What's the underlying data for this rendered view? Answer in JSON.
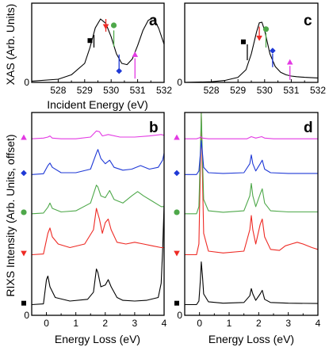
{
  "chart_data": [
    {
      "panel": "a",
      "type": "line",
      "xlabel": "Incident Energy (eV)",
      "ylabel": "XAS (Arb. Units)",
      "xlim": [
        527,
        532
      ],
      "ylim": [
        0,
        1.2
      ],
      "x_ticks": [
        "528",
        "529",
        "530",
        "531",
        "532"
      ],
      "y_ticks": [
        "0"
      ],
      "series": [
        {
          "x": [
            527.0,
            528.0,
            528.5,
            529.0,
            529.2,
            529.4,
            529.6,
            529.8,
            530.0,
            530.2,
            530.4,
            530.6,
            530.8,
            531.0,
            531.2,
            531.4,
            531.6,
            531.8,
            532.0
          ],
          "values": [
            0.02,
            0.05,
            0.12,
            0.3,
            0.55,
            0.86,
            1.0,
            0.93,
            0.72,
            0.45,
            0.3,
            0.28,
            0.37,
            0.58,
            0.82,
            0.98,
            1.02,
            0.85,
            0.6
          ],
          "color": "#000000"
        }
      ],
      "markers": [
        {
          "x": 529.35,
          "y": 0.66,
          "shape": "square",
          "color": "#000000",
          "stem_top": 0.75,
          "stem_bottom": 0.55
        },
        {
          "x": 529.8,
          "y": 0.88,
          "shape": "triangle-down",
          "color": "#ee2a24",
          "stem_top": 1.0,
          "stem_bottom": 0.8
        },
        {
          "x": 530.1,
          "y": 0.9,
          "shape": "circle",
          "color": "#4ea84a",
          "stem_top": 0.82,
          "stem_bottom": 0.56
        },
        {
          "x": 530.3,
          "y": 0.18,
          "shape": "diamond",
          "color": "#1f39d6",
          "stem_top": 0.44,
          "stem_bottom": 0.2
        },
        {
          "x": 530.9,
          "y": 0.44,
          "shape": "triangle-up",
          "color": "#e339e3",
          "stem_top": 0.38,
          "stem_bottom": 0.06
        }
      ]
    },
    {
      "panel": "c",
      "type": "line",
      "xlim": [
        527,
        532
      ],
      "ylim": [
        0,
        1.2
      ],
      "x_ticks": [
        "528",
        "529",
        "530",
        "531",
        "532"
      ],
      "y_ticks": [
        "0"
      ],
      "series": [
        {
          "x": [
            527.0,
            528.0,
            528.5,
            529.0,
            529.3,
            529.5,
            529.7,
            529.8,
            529.9,
            530.0,
            530.2,
            530.4,
            530.6,
            530.8,
            531.0,
            531.2,
            531.5,
            532.0
          ],
          "values": [
            0.0,
            0.01,
            0.03,
            0.08,
            0.2,
            0.45,
            0.8,
            0.94,
            0.95,
            0.82,
            0.45,
            0.25,
            0.16,
            0.12,
            0.1,
            0.09,
            0.08,
            0.07
          ],
          "color": "#000000"
        }
      ],
      "markers": [
        {
          "x": 529.35,
          "y": 0.64,
          "shape": "square",
          "color": "#000000",
          "stem_top": 0.6,
          "stem_bottom": 0.35
        },
        {
          "x": 529.8,
          "y": 0.7,
          "shape": "triangle-down",
          "color": "#ee2a24",
          "stem_top": 0.88,
          "stem_bottom": 0.7
        },
        {
          "x": 530.05,
          "y": 0.84,
          "shape": "circle",
          "color": "#4ea84a",
          "stem_top": 0.78,
          "stem_bottom": 0.55
        },
        {
          "x": 530.3,
          "y": 0.5,
          "shape": "diamond",
          "color": "#1f39d6",
          "stem_top": 0.45,
          "stem_bottom": 0.24
        },
        {
          "x": 530.95,
          "y": 0.32,
          "shape": "triangle-up",
          "color": "#e339e3",
          "stem_top": 0.26,
          "stem_bottom": 0.04
        }
      ]
    },
    {
      "panel": "b",
      "type": "line",
      "xlabel": "Energy Loss (eV)",
      "ylabel": "RIXS Intensity (Arb. Units, offset)",
      "xlim": [
        -0.5,
        4
      ],
      "ylim": [
        0,
        5.6
      ],
      "x_ticks": [
        "0",
        "1",
        "2",
        "3",
        "4"
      ],
      "y_ticks": [
        "0"
      ],
      "series": [
        {
          "marker": "square",
          "color": "#000000",
          "offset": 0.3,
          "x": [
            -0.5,
            -0.1,
            0.0,
            0.05,
            0.12,
            0.3,
            0.8,
            1.4,
            1.6,
            1.7,
            1.75,
            1.85,
            2.0,
            2.1,
            2.2,
            2.4,
            2.6,
            3.0,
            3.4,
            3.8,
            3.9,
            3.95,
            4.0
          ],
          "values": [
            0.0,
            0.02,
            0.7,
            0.8,
            0.5,
            0.2,
            0.1,
            0.15,
            0.35,
            1.0,
            0.9,
            0.5,
            0.55,
            0.7,
            0.5,
            0.2,
            0.12,
            0.1,
            0.12,
            0.2,
            0.6,
            1.5,
            2.8
          ]
        },
        {
          "marker": "triangle-down",
          "color": "#ee2a24",
          "offset": 1.7,
          "x": [
            -0.5,
            -0.1,
            0.05,
            0.12,
            0.2,
            0.4,
            0.8,
            1.3,
            1.6,
            1.7,
            1.8,
            1.9,
            2.0,
            2.1,
            2.2,
            2.4,
            2.7,
            3.0,
            3.3,
            3.6,
            3.9,
            4.0
          ],
          "values": [
            0.0,
            0.02,
            0.6,
            0.75,
            0.5,
            0.3,
            0.2,
            0.3,
            0.7,
            1.3,
            1.0,
            0.6,
            0.9,
            1.0,
            0.7,
            0.35,
            0.3,
            0.35,
            0.3,
            0.25,
            0.2,
            0.2
          ]
        },
        {
          "marker": "circle",
          "color": "#4ea84a",
          "offset": 2.85,
          "x": [
            -0.5,
            -0.1,
            0.05,
            0.12,
            0.2,
            0.5,
            1.0,
            1.5,
            1.7,
            1.75,
            1.85,
            2.0,
            2.15,
            2.3,
            2.6,
            2.9,
            3.1,
            3.3,
            3.6,
            3.9,
            4.0
          ],
          "values": [
            0.0,
            0.02,
            0.18,
            0.3,
            0.15,
            0.05,
            0.08,
            0.3,
            0.8,
            0.75,
            0.5,
            0.45,
            0.65,
            0.4,
            0.3,
            0.5,
            0.62,
            0.5,
            0.35,
            0.2,
            0.2
          ]
        },
        {
          "marker": "diamond",
          "color": "#1f39d6",
          "offset": 3.95,
          "x": [
            -0.5,
            -0.1,
            0.05,
            0.12,
            0.2,
            0.5,
            1.0,
            1.5,
            1.7,
            1.75,
            1.85,
            2.0,
            2.15,
            2.3,
            2.6,
            2.9,
            3.2,
            3.5,
            3.8,
            3.95,
            4.0
          ],
          "values": [
            0.0,
            0.02,
            0.25,
            0.32,
            0.2,
            0.05,
            0.05,
            0.15,
            0.6,
            0.7,
            0.45,
            0.3,
            0.4,
            0.2,
            0.12,
            0.15,
            0.25,
            0.15,
            0.2,
            0.4,
            0.6
          ]
        },
        {
          "marker": "triangle-up",
          "color": "#e339e3",
          "offset": 4.95,
          "x": [
            -0.5,
            -0.1,
            0.05,
            0.12,
            0.2,
            0.5,
            1.0,
            1.5,
            1.7,
            1.8,
            1.9,
            2.1,
            2.5,
            3.0,
            3.5,
            3.9,
            4.0
          ],
          "values": [
            0.0,
            0.02,
            0.05,
            0.08,
            0.02,
            0.0,
            0.0,
            0.05,
            0.22,
            0.2,
            0.08,
            0.12,
            0.05,
            0.05,
            0.08,
            0.12,
            0.1
          ]
        }
      ]
    },
    {
      "panel": "d",
      "type": "line",
      "xlim": [
        -0.5,
        4
      ],
      "ylim": [
        0,
        5.6
      ],
      "x_ticks": [
        "0",
        "1",
        "2",
        "3",
        "4"
      ],
      "y_ticks": [
        "0"
      ],
      "series": [
        {
          "marker": "square",
          "color": "#000000",
          "offset": 0.3,
          "x": [
            -0.5,
            -0.1,
            -0.02,
            0.03,
            0.06,
            0.1,
            0.14,
            0.3,
            0.8,
            1.5,
            1.7,
            1.75,
            1.8,
            1.9,
            2.05,
            2.12,
            2.2,
            2.4,
            3.0,
            4.0
          ],
          "values": [
            0.0,
            0.0,
            0.1,
            0.7,
            1.2,
            0.8,
            0.3,
            0.08,
            0.04,
            0.06,
            0.25,
            0.45,
            0.3,
            0.12,
            0.3,
            0.4,
            0.15,
            0.06,
            0.04,
            0.03
          ]
        },
        {
          "marker": "triangle-down",
          "color": "#ee2a24",
          "offset": 1.7,
          "x": [
            -0.5,
            -0.1,
            -0.02,
            0.03,
            0.06,
            0.1,
            0.14,
            0.3,
            0.8,
            1.5,
            1.7,
            1.75,
            1.8,
            1.9,
            2.05,
            2.12,
            2.2,
            2.4,
            2.7,
            2.9,
            3.1,
            3.3,
            3.5,
            3.8,
            4.0
          ],
          "values": [
            0.0,
            0.0,
            0.3,
            2.5,
            4.0,
            2.2,
            0.6,
            0.1,
            0.05,
            0.1,
            0.7,
            1.1,
            0.7,
            0.3,
            0.85,
            1.0,
            0.5,
            0.15,
            0.12,
            0.25,
            0.3,
            0.35,
            0.3,
            0.2,
            0.15
          ]
        },
        {
          "marker": "circle",
          "color": "#4ea84a",
          "offset": 2.85,
          "x": [
            -0.5,
            -0.1,
            -0.02,
            0.03,
            0.06,
            0.1,
            0.14,
            0.3,
            0.8,
            1.5,
            1.7,
            1.75,
            1.8,
            1.9,
            2.05,
            2.12,
            2.2,
            2.4,
            3.0,
            4.0
          ],
          "values": [
            0.0,
            0.0,
            0.2,
            1.8,
            3.0,
            1.6,
            0.4,
            0.08,
            0.04,
            0.08,
            0.5,
            0.85,
            0.5,
            0.2,
            0.55,
            0.7,
            0.3,
            0.08,
            0.05,
            0.05
          ]
        },
        {
          "marker": "diamond",
          "color": "#1f39d6",
          "offset": 3.95,
          "x": [
            -0.5,
            -0.1,
            -0.02,
            0.03,
            0.06,
            0.1,
            0.14,
            0.3,
            0.8,
            1.5,
            1.7,
            1.75,
            1.8,
            1.9,
            2.05,
            2.12,
            2.2,
            2.4,
            3.0,
            4.0
          ],
          "values": [
            0.0,
            0.0,
            0.1,
            0.6,
            0.95,
            0.6,
            0.2,
            0.05,
            0.03,
            0.05,
            0.3,
            0.55,
            0.3,
            0.1,
            0.3,
            0.4,
            0.15,
            0.05,
            0.03,
            0.03
          ]
        },
        {
          "marker": "triangle-up",
          "color": "#e339e3",
          "offset": 4.95,
          "x": [
            -0.5,
            -0.1,
            0.0,
            0.05,
            0.1,
            0.3,
            1.0,
            1.6,
            1.75,
            1.9,
            2.1,
            2.2,
            2.5,
            3.0,
            4.0
          ],
          "values": [
            0.0,
            0.0,
            0.03,
            0.06,
            0.02,
            0.0,
            0.0,
            0.0,
            0.06,
            0.02,
            0.06,
            0.02,
            0.0,
            0.0,
            0.0
          ]
        }
      ]
    }
  ],
  "figure": {
    "panel_labels": {
      "a": "a",
      "b": "b",
      "c": "c",
      "d": "d"
    },
    "xas_xlabel": "Incident Energy (eV)",
    "rixs_xlabel": "Energy Loss (eV)",
    "xas_ylabel": "XAS (Arb. Units)",
    "rixs_ylabel": "RIXS Intensity (Arb. Units, offset)"
  }
}
